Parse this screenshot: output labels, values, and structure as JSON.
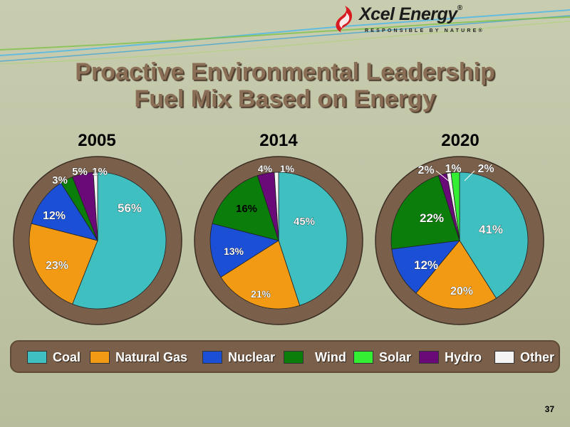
{
  "logo": {
    "name": "Xcel Energy",
    "mark": "®",
    "tagline": "RESPONSIBLE BY NATURE®"
  },
  "title": {
    "line1": "Proactive Environmental Leadership",
    "line2": "Fuel Mix Based on Energy"
  },
  "page_number": "37",
  "colors": {
    "background": "#c4c8aa",
    "ring": "#7a604a",
    "title": "#8a6f56"
  },
  "chart_data": {
    "type": "pie",
    "legend_position": "bottom",
    "categories": [
      "Coal",
      "Natural Gas",
      "Nuclear",
      "Wind",
      "Solar",
      "Hydro",
      "Other"
    ],
    "category_colors": [
      "#3fbfc0",
      "#f39a14",
      "#1a4fd6",
      "#0a7d0a",
      "#33ee33",
      "#6a0a78",
      "#f4f4f4"
    ],
    "charts": [
      {
        "title": "2005",
        "slices": [
          {
            "category": "Coal",
            "value": 56,
            "label": "56%"
          },
          {
            "category": "Natural Gas",
            "value": 23,
            "label": "23%"
          },
          {
            "category": "Nuclear",
            "value": 12,
            "label": "12%"
          },
          {
            "category": "Wind",
            "value": 3,
            "label": "3%"
          },
          {
            "category": "Solar",
            "value": 0,
            "label": ""
          },
          {
            "category": "Hydro",
            "value": 5,
            "label": "5%"
          },
          {
            "category": "Other",
            "value": 1,
            "label": "1%"
          }
        ]
      },
      {
        "title": "2014",
        "slices": [
          {
            "category": "Coal",
            "value": 45,
            "label": "45%"
          },
          {
            "category": "Natural Gas",
            "value": 21,
            "label": "21%"
          },
          {
            "category": "Nuclear",
            "value": 13,
            "label": "13%"
          },
          {
            "category": "Wind",
            "value": 16,
            "label": "16%"
          },
          {
            "category": "Solar",
            "value": 0,
            "label": ""
          },
          {
            "category": "Hydro",
            "value": 4,
            "label": "4%"
          },
          {
            "category": "Other",
            "value": 1,
            "label": "1%"
          }
        ]
      },
      {
        "title": "2020",
        "slices": [
          {
            "category": "Coal",
            "value": 41,
            "label": "41%"
          },
          {
            "category": "Natural Gas",
            "value": 20,
            "label": "20%"
          },
          {
            "category": "Nuclear",
            "value": 12,
            "label": "12%"
          },
          {
            "category": "Wind",
            "value": 22,
            "label": "22%"
          },
          {
            "category": "Hydro",
            "value": 2,
            "label": "2%"
          },
          {
            "category": "Other",
            "value": 1,
            "label": "1%"
          },
          {
            "category": "Solar",
            "value": 2,
            "label": "2%"
          }
        ]
      }
    ]
  }
}
